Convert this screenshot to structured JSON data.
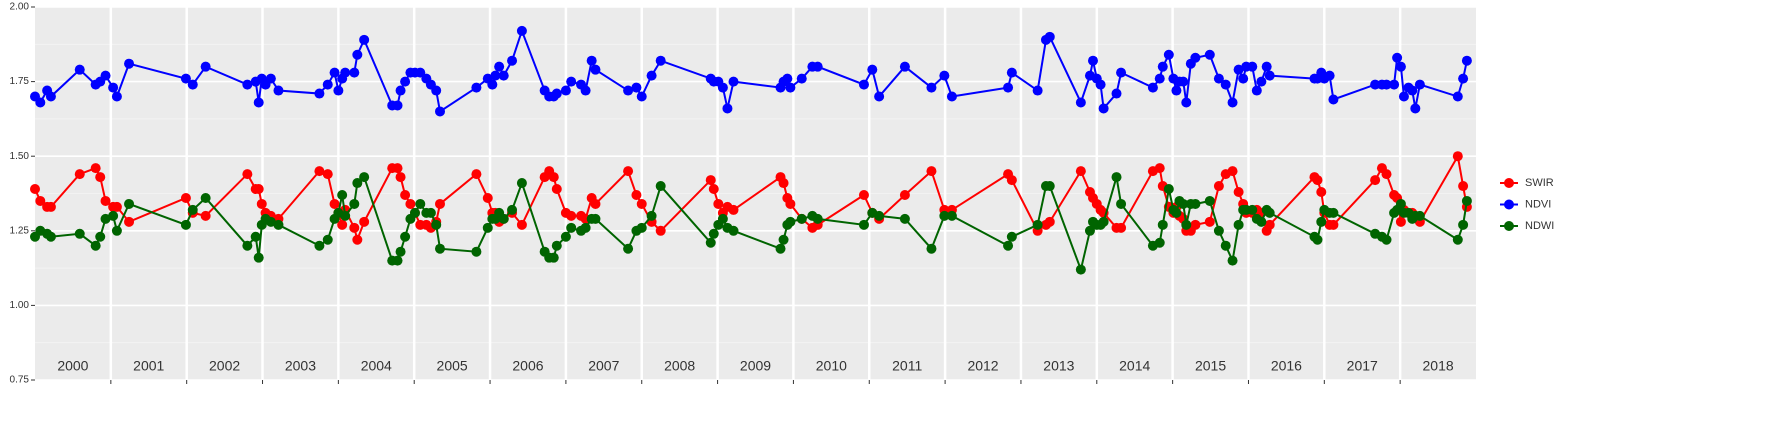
{
  "chart_data": {
    "type": "line",
    "categories": [
      "2000",
      "2001",
      "2002",
      "2003",
      "2004",
      "2005",
      "2006",
      "2007",
      "2008",
      "2009",
      "2010",
      "2011",
      "2012",
      "2013",
      "2014",
      "2015",
      "2016",
      "2017",
      "2018"
    ],
    "x": [
      2000.0,
      2000.07,
      2000.16,
      2000.21,
      2000.59,
      2000.8,
      2000.86,
      2000.93,
      2001.03,
      2001.08,
      2001.24,
      2001.99,
      2002.08,
      2002.25,
      2002.8,
      2002.91,
      2002.95,
      2002.99,
      2003.04,
      2003.11,
      2003.21,
      2003.75,
      2003.86,
      2003.95,
      2004.0,
      2004.05,
      2004.09,
      2004.21,
      2004.25,
      2004.34,
      2004.71,
      2004.78,
      2004.82,
      2004.88,
      2004.95,
      2005.01,
      2005.08,
      2005.16,
      2005.22,
      2005.29,
      2005.34,
      2005.82,
      2005.97,
      2006.03,
      2006.07,
      2006.12,
      2006.18,
      2006.29,
      2006.42,
      2006.72,
      2006.78,
      2006.84,
      2006.88,
      2007.0,
      2007.07,
      2007.2,
      2007.26,
      2007.34,
      2007.39,
      2007.82,
      2007.93,
      2008.0,
      2008.13,
      2008.25,
      2008.91,
      2008.95,
      2009.01,
      2009.07,
      2009.13,
      2009.21,
      2009.83,
      2009.87,
      2009.92,
      2009.96,
      2010.11,
      2010.25,
      2010.32,
      2010.93,
      2011.04,
      2011.13,
      2011.47,
      2011.82,
      2011.99,
      2012.09,
      2012.83,
      2012.88,
      2013.22,
      2013.33,
      2013.38,
      2013.79,
      2013.91,
      2013.95,
      2014.0,
      2014.05,
      2014.09,
      2014.26,
      2014.32,
      2014.74,
      2014.83,
      2014.87,
      2014.95,
      2015.01,
      2015.05,
      2015.09,
      2015.14,
      2015.18,
      2015.24,
      2015.3,
      2015.49,
      2015.61,
      2015.7,
      2015.79,
      2015.87,
      2015.93,
      2015.97,
      2016.05,
      2016.11,
      2016.17,
      2016.24,
      2016.28,
      2016.87,
      2016.91,
      2016.96,
      2017.0,
      2017.07,
      2017.12,
      2017.67,
      2017.76,
      2017.82,
      2017.92,
      2017.96,
      2018.01,
      2018.05,
      2018.11,
      2018.16,
      2018.2,
      2018.26,
      2018.76,
      2018.83,
      2018.88
    ],
    "series": [
      {
        "name": "SWIR",
        "color": "#ff0000",
        "values": [
          1.39,
          1.35,
          1.33,
          1.33,
          1.44,
          1.46,
          1.43,
          1.35,
          1.33,
          1.33,
          1.28,
          1.36,
          1.31,
          1.3,
          1.44,
          1.39,
          1.39,
          1.34,
          1.31,
          1.3,
          1.29,
          1.45,
          1.44,
          1.34,
          1.31,
          1.27,
          1.32,
          1.26,
          1.22,
          1.28,
          1.46,
          1.46,
          1.43,
          1.37,
          1.34,
          1.31,
          1.27,
          1.27,
          1.26,
          1.28,
          1.34,
          1.44,
          1.36,
          1.31,
          1.31,
          1.28,
          1.29,
          1.31,
          1.27,
          1.43,
          1.45,
          1.43,
          1.39,
          1.31,
          1.3,
          1.3,
          1.29,
          1.36,
          1.34,
          1.45,
          1.37,
          1.34,
          1.28,
          1.25,
          1.42,
          1.39,
          1.34,
          1.31,
          1.33,
          1.32,
          1.43,
          1.41,
          1.36,
          1.34,
          1.29,
          1.26,
          1.27,
          1.37,
          1.31,
          1.29,
          1.37,
          1.45,
          1.32,
          1.32,
          1.44,
          1.42,
          1.25,
          1.27,
          1.28,
          1.45,
          1.38,
          1.36,
          1.34,
          1.32,
          1.31,
          1.26,
          1.26,
          1.45,
          1.46,
          1.4,
          1.33,
          1.31,
          1.33,
          1.3,
          1.29,
          1.25,
          1.25,
          1.27,
          1.28,
          1.4,
          1.44,
          1.45,
          1.38,
          1.34,
          1.31,
          1.31,
          1.32,
          1.31,
          1.25,
          1.27,
          1.43,
          1.42,
          1.38,
          1.31,
          1.27,
          1.27,
          1.42,
          1.46,
          1.44,
          1.37,
          1.36,
          1.28,
          1.32,
          1.31,
          1.31,
          1.3,
          1.28,
          1.5,
          1.4,
          1.33
        ]
      },
      {
        "name": "NDVI",
        "color": "#0000ff",
        "values": [
          1.7,
          1.68,
          1.72,
          1.7,
          1.79,
          1.74,
          1.75,
          1.77,
          1.73,
          1.7,
          1.81,
          1.76,
          1.74,
          1.8,
          1.74,
          1.75,
          1.68,
          1.76,
          1.74,
          1.76,
          1.72,
          1.71,
          1.74,
          1.78,
          1.72,
          1.76,
          1.78,
          1.78,
          1.84,
          1.89,
          1.67,
          1.67,
          1.72,
          1.75,
          1.78,
          1.78,
          1.78,
          1.76,
          1.74,
          1.72,
          1.65,
          1.73,
          1.76,
          1.74,
          1.77,
          1.8,
          1.77,
          1.82,
          1.92,
          1.72,
          1.7,
          1.7,
          1.71,
          1.72,
          1.75,
          1.74,
          1.72,
          1.82,
          1.79,
          1.72,
          1.73,
          1.7,
          1.77,
          1.82,
          1.76,
          1.75,
          1.75,
          1.73,
          1.66,
          1.75,
          1.73,
          1.75,
          1.76,
          1.73,
          1.76,
          1.8,
          1.8,
          1.74,
          1.79,
          1.7,
          1.8,
          1.73,
          1.77,
          1.7,
          1.73,
          1.78,
          1.72,
          1.89,
          1.9,
          1.68,
          1.77,
          1.82,
          1.76,
          1.74,
          1.66,
          1.71,
          1.78,
          1.73,
          1.76,
          1.8,
          1.84,
          1.76,
          1.72,
          1.75,
          1.75,
          1.68,
          1.81,
          1.83,
          1.84,
          1.76,
          1.74,
          1.68,
          1.79,
          1.76,
          1.8,
          1.8,
          1.72,
          1.75,
          1.8,
          1.77,
          1.76,
          1.76,
          1.78,
          1.76,
          1.77,
          1.69,
          1.74,
          1.74,
          1.74,
          1.74,
          1.83,
          1.8,
          1.7,
          1.73,
          1.72,
          1.66,
          1.74,
          1.7,
          1.76,
          1.82
        ]
      },
      {
        "name": "NDWI",
        "color": "#006400",
        "values": [
          1.23,
          1.25,
          1.24,
          1.23,
          1.24,
          1.2,
          1.23,
          1.29,
          1.3,
          1.25,
          1.34,
          1.27,
          1.32,
          1.36,
          1.2,
          1.23,
          1.16,
          1.27,
          1.29,
          1.28,
          1.27,
          1.2,
          1.22,
          1.29,
          1.31,
          1.37,
          1.3,
          1.34,
          1.41,
          1.43,
          1.15,
          1.15,
          1.18,
          1.23,
          1.29,
          1.31,
          1.34,
          1.31,
          1.31,
          1.27,
          1.19,
          1.18,
          1.26,
          1.29,
          1.29,
          1.31,
          1.29,
          1.32,
          1.41,
          1.18,
          1.16,
          1.16,
          1.2,
          1.23,
          1.26,
          1.25,
          1.26,
          1.29,
          1.29,
          1.19,
          1.25,
          1.26,
          1.3,
          1.4,
          1.21,
          1.24,
          1.27,
          1.29,
          1.26,
          1.25,
          1.19,
          1.22,
          1.27,
          1.28,
          1.29,
          1.3,
          1.29,
          1.27,
          1.31,
          1.3,
          1.29,
          1.19,
          1.3,
          1.3,
          1.2,
          1.23,
          1.27,
          1.4,
          1.4,
          1.12,
          1.25,
          1.28,
          1.27,
          1.27,
          1.28,
          1.43,
          1.34,
          1.2,
          1.21,
          1.27,
          1.39,
          1.32,
          1.31,
          1.35,
          1.34,
          1.27,
          1.34,
          1.34,
          1.35,
          1.25,
          1.2,
          1.15,
          1.27,
          1.32,
          1.32,
          1.32,
          1.29,
          1.28,
          1.32,
          1.31,
          1.23,
          1.22,
          1.28,
          1.32,
          1.31,
          1.31,
          1.24,
          1.23,
          1.22,
          1.31,
          1.32,
          1.34,
          1.31,
          1.31,
          1.29,
          1.3,
          1.3,
          1.22,
          1.27,
          1.35
        ]
      }
    ],
    "xlim": [
      2000,
      2019
    ],
    "ylim": [
      0.75,
      2
    ],
    "yticks": [
      0.75,
      {
        "value": 1,
        "label": "1.00"
      },
      1.25,
      {
        "value": 1.5,
        "label": "1.50"
      },
      1.75,
      {
        "value": 2,
        "label": "2.00"
      }
    ],
    "grid": true,
    "legend": "right"
  }
}
